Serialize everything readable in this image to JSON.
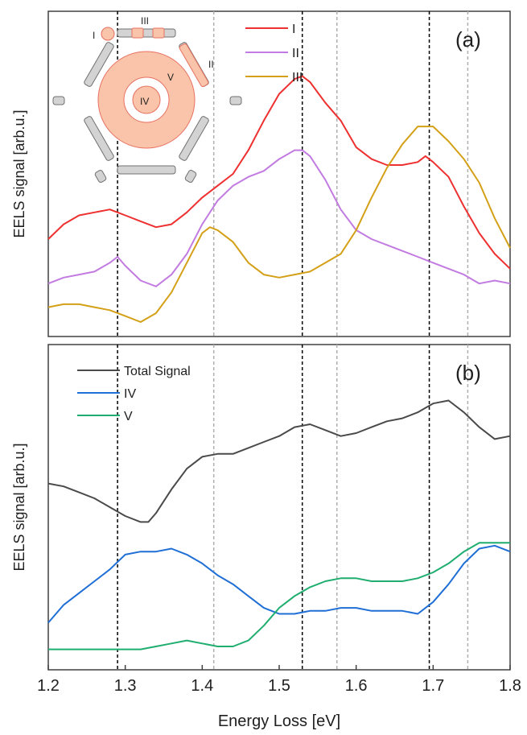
{
  "chart_data": [
    {
      "panel_label": "(a)",
      "type": "line",
      "ylabel": "EELS signal [arb.u.]",
      "xlim": [
        1.2,
        1.8
      ],
      "ylim": [
        0,
        1
      ],
      "y_ticks_shown": false,
      "x_tick_labels_shown": false,
      "legend_position": "top-center",
      "vertical_lines": [
        {
          "x": 1.29,
          "color": "#000000",
          "style": "dashed"
        },
        {
          "x": 1.415,
          "color": "#b0b0b0",
          "style": "dashed"
        },
        {
          "x": 1.53,
          "color": "#000000",
          "style": "dashed"
        },
        {
          "x": 1.575,
          "color": "#b0b0b0",
          "style": "dashed"
        },
        {
          "x": 1.695,
          "color": "#000000",
          "style": "dashed"
        },
        {
          "x": 1.745,
          "color": "#b0b0b0",
          "style": "dashed"
        }
      ],
      "inset": {
        "description_labels": [
          "I",
          "III",
          "II",
          "V",
          "IV"
        ],
        "fill_color": "#f9c4aa",
        "segment_color": "#d3d3d3"
      },
      "series": [
        {
          "name": "I",
          "color": "#ee3030",
          "x": [
            1.2,
            1.22,
            1.24,
            1.26,
            1.28,
            1.29,
            1.3,
            1.32,
            1.34,
            1.36,
            1.38,
            1.4,
            1.42,
            1.44,
            1.46,
            1.48,
            1.5,
            1.52,
            1.53,
            1.54,
            1.56,
            1.58,
            1.6,
            1.62,
            1.64,
            1.66,
            1.68,
            1.69,
            1.7,
            1.72,
            1.74,
            1.76,
            1.78,
            1.8
          ],
          "y": [
            0.28,
            0.33,
            0.36,
            0.37,
            0.38,
            0.37,
            0.36,
            0.34,
            0.32,
            0.33,
            0.37,
            0.42,
            0.46,
            0.5,
            0.58,
            0.68,
            0.77,
            0.82,
            0.83,
            0.81,
            0.74,
            0.68,
            0.59,
            0.55,
            0.53,
            0.53,
            0.54,
            0.56,
            0.54,
            0.49,
            0.39,
            0.3,
            0.23,
            0.18
          ]
        },
        {
          "name": "II",
          "color": "#c27be0",
          "x": [
            1.2,
            1.22,
            1.24,
            1.26,
            1.28,
            1.29,
            1.3,
            1.32,
            1.34,
            1.36,
            1.38,
            1.4,
            1.42,
            1.44,
            1.46,
            1.48,
            1.5,
            1.52,
            1.53,
            1.54,
            1.56,
            1.58,
            1.6,
            1.62,
            1.64,
            1.66,
            1.68,
            1.7,
            1.72,
            1.74,
            1.76,
            1.78,
            1.8
          ],
          "y": [
            0.13,
            0.15,
            0.16,
            0.17,
            0.2,
            0.22,
            0.19,
            0.14,
            0.12,
            0.16,
            0.23,
            0.33,
            0.41,
            0.46,
            0.49,
            0.51,
            0.55,
            0.58,
            0.58,
            0.56,
            0.48,
            0.38,
            0.31,
            0.28,
            0.26,
            0.24,
            0.22,
            0.2,
            0.18,
            0.16,
            0.13,
            0.14,
            0.13
          ]
        },
        {
          "name": "III",
          "color": "#d4a017",
          "x": [
            1.2,
            1.22,
            1.24,
            1.26,
            1.28,
            1.3,
            1.32,
            1.34,
            1.36,
            1.38,
            1.4,
            1.41,
            1.42,
            1.44,
            1.46,
            1.48,
            1.5,
            1.52,
            1.54,
            1.56,
            1.58,
            1.6,
            1.62,
            1.64,
            1.66,
            1.68,
            1.7,
            1.72,
            1.74,
            1.76,
            1.78,
            1.8
          ],
          "y": [
            0.05,
            0.06,
            0.06,
            0.05,
            0.04,
            0.02,
            0.0,
            0.03,
            0.1,
            0.2,
            0.3,
            0.32,
            0.31,
            0.27,
            0.2,
            0.16,
            0.15,
            0.16,
            0.17,
            0.2,
            0.23,
            0.31,
            0.42,
            0.52,
            0.6,
            0.66,
            0.66,
            0.61,
            0.55,
            0.47,
            0.35,
            0.25
          ]
        }
      ]
    },
    {
      "panel_label": "(b)",
      "type": "line",
      "ylabel": "EELS signal [arb.u.]",
      "xlabel": "Energy Loss [eV]",
      "xlim": [
        1.2,
        1.8
      ],
      "ylim": [
        0,
        1
      ],
      "xticks": [
        "1.2",
        "1.3",
        "1.4",
        "1.5",
        "1.6",
        "1.7",
        "1.8"
      ],
      "xtick_values": [
        1.2,
        1.3,
        1.4,
        1.5,
        1.6,
        1.7,
        1.8
      ],
      "y_ticks_shown": false,
      "legend_position": "top-left",
      "vertical_lines": [
        {
          "x": 1.29,
          "color": "#000000",
          "style": "dashed"
        },
        {
          "x": 1.415,
          "color": "#b0b0b0",
          "style": "dashed"
        },
        {
          "x": 1.53,
          "color": "#000000",
          "style": "dashed"
        },
        {
          "x": 1.575,
          "color": "#b0b0b0",
          "style": "dashed"
        },
        {
          "x": 1.695,
          "color": "#000000",
          "style": "dashed"
        },
        {
          "x": 1.745,
          "color": "#b0b0b0",
          "style": "dashed"
        }
      ],
      "series": [
        {
          "name": "Total Signal",
          "color": "#4a4a4a",
          "x": [
            1.2,
            1.22,
            1.24,
            1.26,
            1.28,
            1.3,
            1.32,
            1.33,
            1.34,
            1.36,
            1.38,
            1.4,
            1.42,
            1.44,
            1.46,
            1.48,
            1.5,
            1.52,
            1.54,
            1.56,
            1.58,
            1.6,
            1.62,
            1.64,
            1.66,
            1.68,
            1.7,
            1.72,
            1.74,
            1.76,
            1.78,
            1.8
          ],
          "y": [
            0.58,
            0.57,
            0.55,
            0.53,
            0.5,
            0.47,
            0.45,
            0.45,
            0.48,
            0.56,
            0.63,
            0.67,
            0.68,
            0.68,
            0.7,
            0.72,
            0.74,
            0.77,
            0.78,
            0.76,
            0.74,
            0.75,
            0.77,
            0.79,
            0.8,
            0.82,
            0.85,
            0.86,
            0.82,
            0.77,
            0.73,
            0.74
          ]
        },
        {
          "name": "IV",
          "color": "#1f6fd6",
          "x": [
            1.2,
            1.22,
            1.24,
            1.26,
            1.28,
            1.3,
            1.32,
            1.34,
            1.36,
            1.38,
            1.4,
            1.42,
            1.44,
            1.46,
            1.48,
            1.5,
            1.52,
            1.54,
            1.56,
            1.58,
            1.6,
            1.62,
            1.64,
            1.66,
            1.68,
            1.7,
            1.72,
            1.74,
            1.76,
            1.78,
            1.8
          ],
          "y": [
            0.11,
            0.17,
            0.21,
            0.25,
            0.29,
            0.34,
            0.35,
            0.35,
            0.36,
            0.34,
            0.31,
            0.27,
            0.24,
            0.2,
            0.16,
            0.14,
            0.14,
            0.15,
            0.15,
            0.16,
            0.16,
            0.15,
            0.15,
            0.15,
            0.14,
            0.18,
            0.24,
            0.31,
            0.36,
            0.37,
            0.35
          ]
        },
        {
          "name": "V",
          "color": "#1fae6f",
          "x": [
            1.2,
            1.22,
            1.24,
            1.26,
            1.28,
            1.3,
            1.32,
            1.34,
            1.36,
            1.38,
            1.4,
            1.42,
            1.44,
            1.46,
            1.48,
            1.5,
            1.52,
            1.54,
            1.56,
            1.58,
            1.6,
            1.62,
            1.64,
            1.66,
            1.68,
            1.7,
            1.72,
            1.74,
            1.76,
            1.78,
            1.8
          ],
          "y": [
            0.02,
            0.02,
            0.02,
            0.02,
            0.02,
            0.02,
            0.02,
            0.03,
            0.04,
            0.05,
            0.04,
            0.03,
            0.03,
            0.05,
            0.1,
            0.16,
            0.2,
            0.23,
            0.25,
            0.26,
            0.26,
            0.25,
            0.25,
            0.25,
            0.26,
            0.28,
            0.31,
            0.35,
            0.38,
            0.38,
            0.38
          ]
        }
      ]
    }
  ]
}
